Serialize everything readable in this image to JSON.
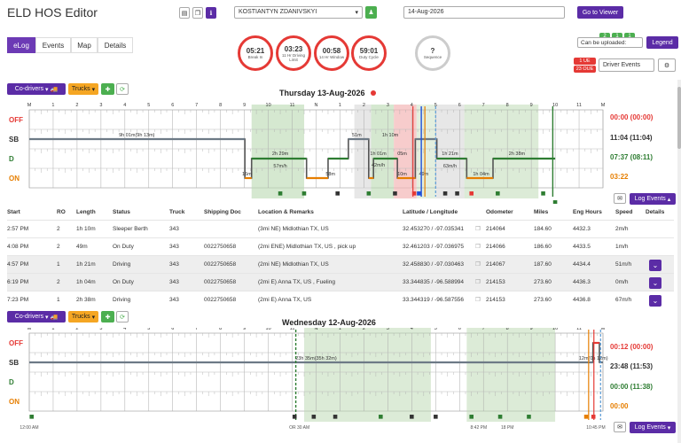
{
  "app_title": "ELD HOS Editor",
  "driver": {
    "name": "KOSTIANTYN ZDANIVSKYI"
  },
  "date_input": "14-Aug-2026",
  "go_viewer": "Go to Viewer",
  "tabs": [
    {
      "label": "eLog"
    },
    {
      "label": "Events"
    },
    {
      "label": "Map"
    },
    {
      "label": "Details"
    }
  ],
  "gauges": [
    {
      "value": "05:21",
      "label": "Break In"
    },
    {
      "value": "03:23",
      "label": "11 Hr Driving Limit"
    },
    {
      "value": "00:58",
      "label": "14 Hr Window"
    },
    {
      "value": "59:01",
      "label": "Duty Cycle"
    },
    {
      "value": "?",
      "label": "Sequence"
    }
  ],
  "badges": {
    "b1": "2",
    "b2": "1",
    "b3": "1",
    "ue": "1 UE",
    "oue": "23 OUE"
  },
  "can_upload": "Can be uploaded:",
  "legend": "Legend",
  "driver_events": "Driver Events",
  "codrivers": "Co-drivers",
  "trucks": "Trucks",
  "day1": {
    "title": "Thursday 13-Aug-2026",
    "labels": [
      "OFF",
      "SB",
      "D",
      "ON"
    ],
    "totals": [
      "00:00 (00:00)",
      "11:04 (11:04)",
      "07:37 (08:11)",
      "03:22"
    ],
    "hours": [
      "M",
      "1",
      "2",
      "3",
      "4",
      "5",
      "6",
      "7",
      "8",
      "9",
      "10",
      "11",
      "N",
      "1",
      "2",
      "3",
      "4",
      "5",
      "6",
      "7",
      "8",
      "9",
      "10",
      "11",
      "M"
    ],
    "annotations": [
      "9h 01m(9h 13m)",
      "2h 29m",
      "57m/h",
      "51m",
      "1h 10m",
      "1h 01m",
      "42m/h",
      "05m",
      "1h 21m",
      "63m/h",
      "2h 38m",
      "16m",
      "58m",
      "10m",
      "49m",
      "1h 04m"
    ],
    "log_events": "Log Events"
  },
  "table": {
    "headers": [
      "Start",
      "RO",
      "Length",
      "Status",
      "Truck",
      "Shipping Doc",
      "Location & Remarks",
      "Latitude / Longitude",
      "Odometer",
      "Miles",
      "Eng Hours",
      "Speed",
      "Details"
    ],
    "rows": [
      {
        "start": "2:57 PM",
        "ro": "2",
        "len": "1h 10m",
        "status": "Sleeper Berth",
        "truck": "343",
        "doc": "",
        "loc": "(3mi NE) Midlothian TX, US",
        "latlng": "32.453270 / -97.035341",
        "odo": "214064",
        "miles": "184.60",
        "eng": "4432.3",
        "speed": "2m/h"
      },
      {
        "start": "4:08 PM",
        "ro": "2",
        "len": "49m",
        "status": "On Duty",
        "truck": "343",
        "doc": "0022750658",
        "loc": "(2mi ENE) Midlothian TX, US , pick up",
        "latlng": "32.461203 / -97.036975",
        "odo": "214066",
        "miles": "186.60",
        "eng": "4433.5",
        "speed": "1m/h"
      },
      {
        "start": "4:57 PM",
        "ro": "1",
        "len": "1h 21m",
        "status": "Driving",
        "truck": "343",
        "doc": "0022750658",
        "loc": "(2mi NE) Midlothian TX, US",
        "latlng": "32.458830 / -97.030463",
        "odo": "214067",
        "miles": "187.60",
        "eng": "4434.4",
        "speed": "51m/h"
      },
      {
        "start": "6:19 PM",
        "ro": "2",
        "len": "1h 04m",
        "status": "On Duty",
        "truck": "343",
        "doc": "0022750658",
        "loc": "(2mi E) Anna TX, US , Fueling",
        "latlng": "33.344835 / -96.588994",
        "odo": "214153",
        "miles": "273.60",
        "eng": "4436.3",
        "speed": "0m/h"
      },
      {
        "start": "7:23 PM",
        "ro": "1",
        "len": "2h 38m",
        "status": "Driving",
        "truck": "343",
        "doc": "0022750658",
        "loc": "(2mi E) Anna TX, US",
        "latlng": "33.344319 / -96.587556",
        "odo": "214153",
        "miles": "273.60",
        "eng": "4436.8",
        "speed": "67m/h"
      }
    ]
  },
  "day2": {
    "title": "Wednesday 12-Aug-2026",
    "labels": [
      "OFF",
      "SB",
      "D",
      "ON"
    ],
    "totals": [
      "00:12 (00:00)",
      "23:48 (11:53)",
      "00:00 (11:38)",
      "00:00"
    ],
    "annotations": [
      "23h 35m(35h 32m)",
      "12m(0h 12m)"
    ],
    "time_marks": [
      "12:00 AM",
      "OR 30 AM",
      "8:42 PM",
      "18 PM",
      "10:45 PM"
    ],
    "log_events": "Log Events"
  },
  "colors": {
    "off": "#e53935",
    "sb": "#333",
    "d": "#2e7d32",
    "on": "#e67e00",
    "accent": "#5b2ca6"
  }
}
